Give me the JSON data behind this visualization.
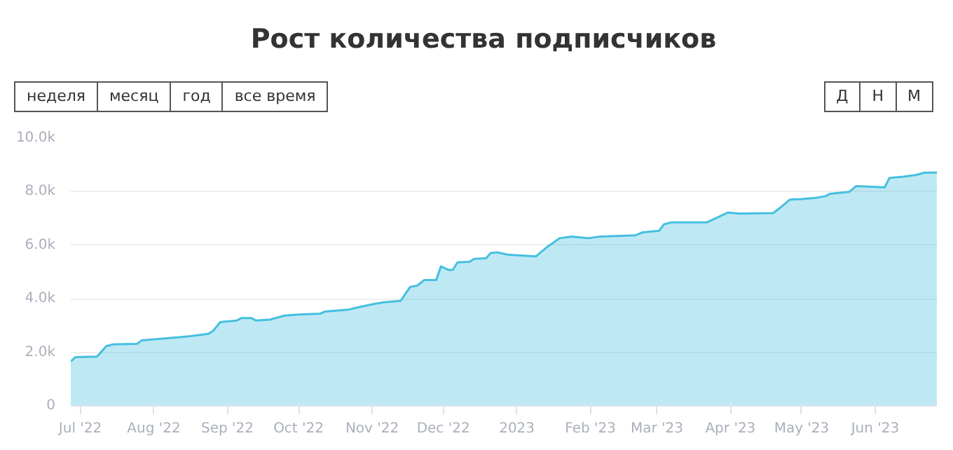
{
  "chart_data": {
    "type": "area",
    "title": "Рост количества подписчиков",
    "annotations": [
      "неделя",
      "месяц",
      "год",
      "все время",
      "Д",
      "Н",
      "М"
    ],
    "x": [
      "2022-06-27",
      "2022-06-29",
      "2022-07-08",
      "2022-07-09",
      "2022-07-12",
      "2022-07-15",
      "2022-07-25",
      "2022-07-27",
      "2022-08-06",
      "2022-08-16",
      "2022-08-24",
      "2022-08-26",
      "2022-08-29",
      "2022-09-05",
      "2022-09-07",
      "2022-09-11",
      "2022-09-13",
      "2022-09-19",
      "2022-09-25",
      "2022-10-01",
      "2022-10-10",
      "2022-10-12",
      "2022-10-22",
      "2022-10-26",
      "2022-11-02",
      "2022-11-06",
      "2022-11-13",
      "2022-11-14",
      "2022-11-17",
      "2022-11-20",
      "2022-11-23",
      "2022-11-28",
      "2022-11-30",
      "2022-12-03",
      "2022-12-05",
      "2022-12-07",
      "2022-12-12",
      "2022-12-14",
      "2022-12-19",
      "2022-12-21",
      "2022-12-24",
      "2022-12-28",
      "2023-01-09",
      "2023-01-14",
      "2023-01-19",
      "2023-01-24",
      "2023-01-31",
      "2023-02-05",
      "2023-02-20",
      "2023-02-23",
      "2023-03-02",
      "2023-03-04",
      "2023-03-07",
      "2023-03-22",
      "2023-03-31",
      "2023-04-05",
      "2023-04-19",
      "2023-04-22",
      "2023-04-26",
      "2023-05-01",
      "2023-05-07",
      "2023-05-11",
      "2023-05-13",
      "2023-05-21",
      "2023-05-24",
      "2023-05-31",
      "2023-06-05",
      "2023-06-07",
      "2023-06-13",
      "2023-06-18",
      "2023-06-22",
      "2023-06-27"
    ],
    "series": [
      {
        "color": "#45bfe0",
        "values": [
          1660,
          1820,
          1840,
          1930,
          2230,
          2300,
          2320,
          2450,
          2520,
          2600,
          2690,
          2800,
          3130,
          3190,
          3280,
          3280,
          3190,
          3220,
          3370,
          3410,
          3440,
          3520,
          3590,
          3680,
          3810,
          3870,
          3920,
          4050,
          4440,
          4490,
          4700,
          4700,
          5210,
          5080,
          5080,
          5360,
          5380,
          5490,
          5510,
          5710,
          5730,
          5650,
          5580,
          5950,
          6260,
          6320,
          6260,
          6320,
          6370,
          6480,
          6540,
          6780,
          6850,
          6850,
          7220,
          7180,
          7200,
          7400,
          7700,
          7720,
          7770,
          7830,
          7920,
          7990,
          8210,
          8180,
          8160,
          8510,
          8560,
          8620,
          8710,
          8710
        ]
      }
    ],
    "xlim": [
      "2022-06-27",
      "2023-06-27"
    ],
    "xticks": [
      {
        "value": "2022-07-01",
        "label": "Jul '22"
      },
      {
        "value": "2022-08-01",
        "label": "Aug '22"
      },
      {
        "value": "2022-09-01",
        "label": "Sep '22"
      },
      {
        "value": "2022-10-01",
        "label": "Oct '22"
      },
      {
        "value": "2022-11-01",
        "label": "Nov '22"
      },
      {
        "value": "2022-12-01",
        "label": "Dec '22"
      },
      {
        "value": "2023-01-01",
        "label": "2023"
      },
      {
        "value": "2023-02-01",
        "label": "Feb '23"
      },
      {
        "value": "2023-03-01",
        "label": "Mar '23"
      },
      {
        "value": "2023-04-01",
        "label": "Apr '23"
      },
      {
        "value": "2023-05-01",
        "label": "May '23"
      },
      {
        "value": "2023-06-01",
        "label": "Jun '23"
      }
    ],
    "ylim": [
      0,
      10000
    ],
    "yticks": [
      0,
      {
        "value": 2000,
        "label": "2.0k"
      },
      {
        "value": 4000,
        "label": "4.0k"
      },
      {
        "value": 6000,
        "label": "6.0k"
      },
      {
        "value": 8000,
        "label": "8.0k"
      },
      {
        "value": 10000,
        "label": "10.0k"
      }
    ],
    "grid": "y"
  }
}
